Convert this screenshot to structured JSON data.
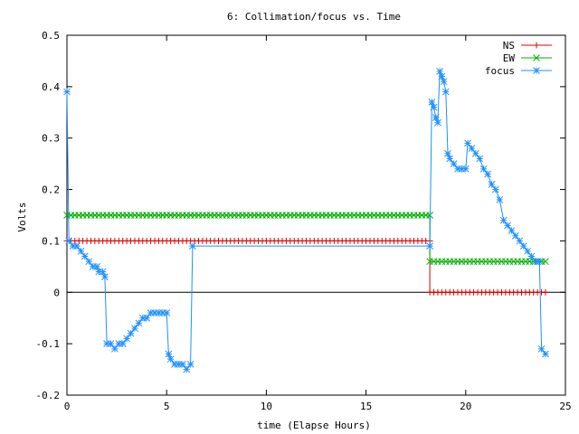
{
  "chart_data": {
    "type": "line",
    "title": "6: Collimation/focus vs. Time",
    "xlabel": "time (Elapse Hours)",
    "ylabel": "Volts",
    "xlim": [
      0,
      25
    ],
    "ylim": [
      -0.2,
      0.5
    ],
    "xticks": [
      0,
      5,
      10,
      15,
      20,
      25
    ],
    "yticks": [
      -0.2,
      -0.1,
      0,
      0.1,
      0.2,
      0.3,
      0.4,
      0.5
    ],
    "xtick_labels": [
      "0",
      "5",
      "10",
      "15",
      "20",
      "25"
    ],
    "ytick_labels": [
      "-0.2",
      "-0.1",
      "0",
      "0.1",
      "0.2",
      "0.3",
      "0.4",
      "0.5"
    ],
    "legend_position": "top-right",
    "grid": false,
    "series": [
      {
        "name": "NS",
        "color": "#e00000",
        "marker": "plus",
        "points": [
          [
            0.0,
            0.1
          ],
          [
            18.2,
            0.1
          ],
          [
            18.2,
            0.0
          ],
          [
            24.0,
            0.0
          ]
        ]
      },
      {
        "name": "EW",
        "color": "#00b000",
        "marker": "cross",
        "points": [
          [
            0.0,
            0.15
          ],
          [
            18.2,
            0.15
          ],
          [
            18.2,
            0.06
          ],
          [
            24.0,
            0.06
          ]
        ]
      },
      {
        "name": "focus",
        "color": "#1e90ff",
        "marker": "star",
        "points": [
          [
            0.0,
            0.39
          ],
          [
            0.1,
            0.1
          ],
          [
            0.3,
            0.09
          ],
          [
            0.5,
            0.09
          ],
          [
            0.7,
            0.08
          ],
          [
            0.9,
            0.07
          ],
          [
            1.1,
            0.06
          ],
          [
            1.3,
            0.05
          ],
          [
            1.5,
            0.05
          ],
          [
            1.6,
            0.04
          ],
          [
            1.8,
            0.04
          ],
          [
            1.9,
            0.03
          ],
          [
            2.0,
            -0.1
          ],
          [
            2.2,
            -0.1
          ],
          [
            2.4,
            -0.11
          ],
          [
            2.6,
            -0.1
          ],
          [
            2.8,
            -0.1
          ],
          [
            3.0,
            -0.09
          ],
          [
            3.2,
            -0.08
          ],
          [
            3.4,
            -0.07
          ],
          [
            3.6,
            -0.06
          ],
          [
            3.8,
            -0.05
          ],
          [
            4.0,
            -0.05
          ],
          [
            4.2,
            -0.04
          ],
          [
            4.4,
            -0.04
          ],
          [
            4.6,
            -0.04
          ],
          [
            4.8,
            -0.04
          ],
          [
            5.0,
            -0.04
          ],
          [
            5.1,
            -0.12
          ],
          [
            5.2,
            -0.13
          ],
          [
            5.4,
            -0.14
          ],
          [
            5.6,
            -0.14
          ],
          [
            5.8,
            -0.14
          ],
          [
            6.0,
            -0.15
          ],
          [
            6.2,
            -0.14
          ],
          [
            6.3,
            0.09
          ],
          [
            18.2,
            0.09
          ],
          [
            18.3,
            0.37
          ],
          [
            18.4,
            0.36
          ],
          [
            18.5,
            0.34
          ],
          [
            18.6,
            0.33
          ],
          [
            18.7,
            0.43
          ],
          [
            18.8,
            0.42
          ],
          [
            18.9,
            0.41
          ],
          [
            19.0,
            0.39
          ],
          [
            19.1,
            0.27
          ],
          [
            19.2,
            0.26
          ],
          [
            19.4,
            0.25
          ],
          [
            19.6,
            0.24
          ],
          [
            19.8,
            0.24
          ],
          [
            20.0,
            0.24
          ],
          [
            20.1,
            0.29
          ],
          [
            20.3,
            0.28
          ],
          [
            20.5,
            0.27
          ],
          [
            20.7,
            0.26
          ],
          [
            20.9,
            0.24
          ],
          [
            21.1,
            0.23
          ],
          [
            21.3,
            0.21
          ],
          [
            21.5,
            0.2
          ],
          [
            21.7,
            0.18
          ],
          [
            21.9,
            0.14
          ],
          [
            22.1,
            0.13
          ],
          [
            22.3,
            0.12
          ],
          [
            22.5,
            0.11
          ],
          [
            22.7,
            0.1
          ],
          [
            22.9,
            0.09
          ],
          [
            23.1,
            0.08
          ],
          [
            23.3,
            0.07
          ],
          [
            23.5,
            0.06
          ],
          [
            23.7,
            0.06
          ],
          [
            23.8,
            -0.11
          ],
          [
            24.0,
            -0.12
          ]
        ]
      }
    ]
  }
}
